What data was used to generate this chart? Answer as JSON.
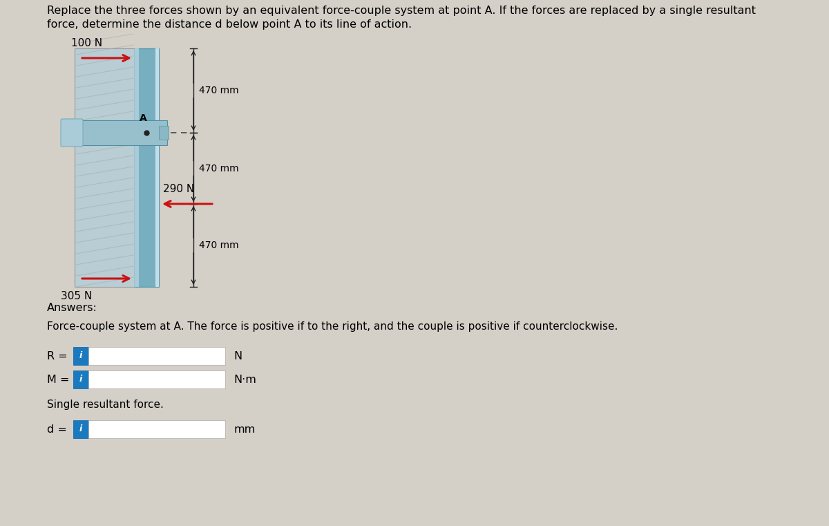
{
  "bg_color": "#d4d0c8",
  "title_text1": "Replace the three forces shown by an equivalent force-couple system at point A. If the forces are replaced by a single resultant",
  "title_text2": "force, determine the distance d below point A to its line of action.",
  "title_fontsize": 11.5,
  "force1_label": "100 N",
  "force2_label": "290 N",
  "force3_label": "305 N",
  "dim1_label": "470 mm",
  "dim2_label": "470 mm",
  "dim3_label": "470 mm",
  "point_label": "A",
  "answers_label": "Answers:",
  "fcs_text": "Force-couple system at A. The force is positive if to the right, and the couple is positive if counterclockwise.",
  "R_label": "R =",
  "R_unit": "N",
  "M_label": "M =",
  "M_unit": "N·m",
  "single_label": "Single resultant force.",
  "d_label": "d =",
  "d_unit": "mm",
  "icon_color": "#1a7abf",
  "icon_text_color": "#ffffff",
  "wall_color_left": "#b8cdd4",
  "wall_color_right": "#7ab0c0",
  "wall_inner": "#c8dde4",
  "beam_color_main": "#78afc0",
  "beam_color_light": "#a8ccd8",
  "beam_color_lighter": "#c4dde8",
  "bracket_color": "#98c0cc",
  "arrow_color": "#cc1111",
  "dim_line_color": "#222222",
  "dashed_line_color": "#444444"
}
